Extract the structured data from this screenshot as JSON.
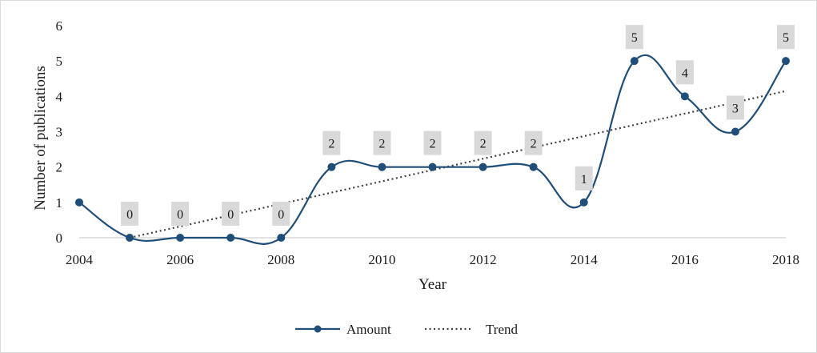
{
  "chart_data": {
    "type": "line",
    "title": "",
    "xlabel": "Year",
    "ylabel": "Number of publications",
    "x": [
      2004,
      2005,
      2006,
      2007,
      2008,
      2009,
      2010,
      2011,
      2012,
      2013,
      2014,
      2015,
      2016,
      2017,
      2018
    ],
    "xlim": [
      2004,
      2018
    ],
    "ylim": [
      0,
      6
    ],
    "x_ticks": [
      2004,
      2006,
      2008,
      2010,
      2012,
      2014,
      2016,
      2018
    ],
    "y_ticks": [
      0,
      1,
      2,
      3,
      4,
      5,
      6
    ],
    "grid": false,
    "legend_position": "bottom",
    "series": [
      {
        "name": "Amount",
        "style": "smooth line with circle markers",
        "color": "#1f4e79",
        "values": [
          1,
          0,
          0,
          0,
          0,
          2,
          2,
          2,
          2,
          2,
          1,
          5,
          4,
          3,
          5
        ],
        "data_labels": [
          null,
          "0",
          "0",
          "0",
          "0",
          "2",
          "2",
          "2",
          "2",
          "2",
          "1",
          "5",
          "4",
          "3",
          "5"
        ]
      },
      {
        "name": "Trend",
        "style": "dotted linear trendline",
        "color": "#404040",
        "start": [
          2005,
          0
        ],
        "end": [
          2018,
          4.15
        ]
      }
    ],
    "label_box_color": "#d9d9d9",
    "axis_color": "#d9d9d9"
  }
}
